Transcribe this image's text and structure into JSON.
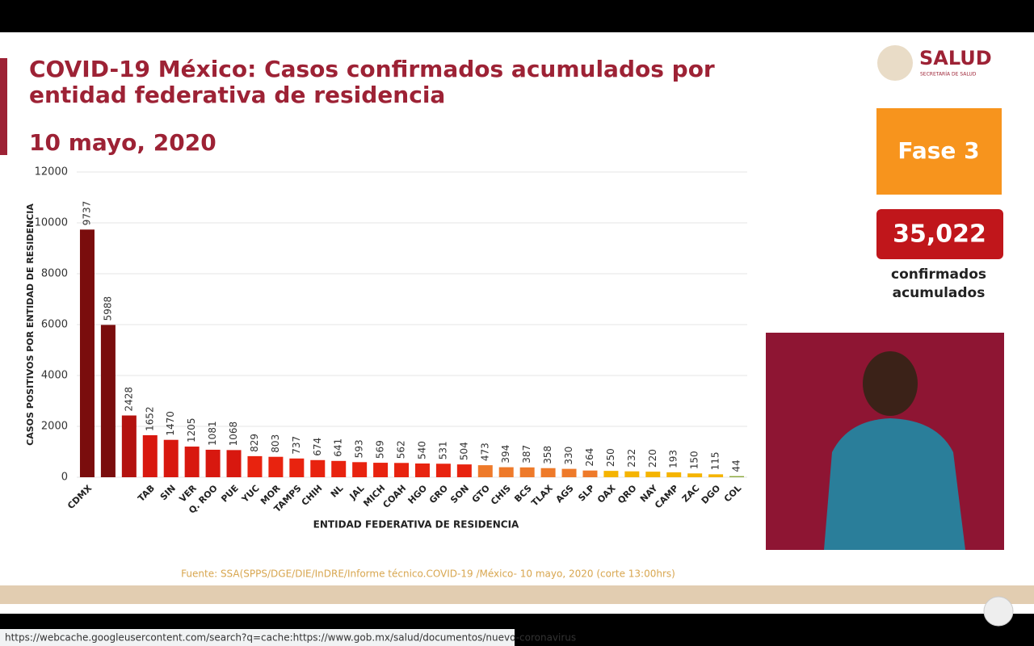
{
  "chart_data": {
    "type": "bar",
    "title": "COVID-19 México: Casos confirmados acumulados por entidad federativa de residencia",
    "subtitle": "10 mayo, 2020",
    "y_label": "CASOS POSITIVOS POR ENTIDAD DE RESIDENCIA",
    "x_label": "ENTIDAD FEDERATIVA DE RESIDENCIA",
    "categories": [
      "CDMX",
      null,
      null,
      "TAB",
      "SIN",
      "VER",
      "Q. ROO",
      "PUE",
      "YUC",
      "MOR",
      "TAMPS",
      "CHIH",
      "NL",
      "JAL",
      "MICH",
      "COAH",
      "HGO",
      "GRO",
      "SON",
      "GTO",
      "CHIS",
      "BCS",
      "TLAX",
      "AGS",
      "SLP",
      "OAX",
      "QRO",
      "NAY",
      "CAMP",
      "ZAC",
      "DGO",
      "COL"
    ],
    "values": [
      9737,
      5988,
      2428,
      1652,
      1470,
      1205,
      1081,
      1068,
      829,
      803,
      737,
      674,
      641,
      593,
      569,
      562,
      540,
      531,
      504,
      473,
      394,
      387,
      358,
      330,
      264,
      250,
      232,
      220,
      193,
      150,
      115,
      44
    ],
    "colors": [
      "#7a0d0d",
      "#7a0d0d",
      "#b3120f",
      "#d8180f",
      "#d8180f",
      "#d8180f",
      "#d8180f",
      "#d8180f",
      "#e8230f",
      "#e8230f",
      "#e8230f",
      "#e8230f",
      "#e8230f",
      "#e8230f",
      "#e8230f",
      "#e8230f",
      "#e8230f",
      "#e8230f",
      "#e8230f",
      "#ee7a2a",
      "#ee7a2a",
      "#ee7a2a",
      "#ee7a2a",
      "#ee7a2a",
      "#ee7a2a",
      "#f5b400",
      "#f5b400",
      "#f5b400",
      "#f5b400",
      "#f5b400",
      "#f5b400",
      "#8aa83a"
    ],
    "ylim": [
      0,
      12000
    ],
    "yticks": [
      0,
      2000,
      4000,
      6000,
      8000,
      10000,
      12000
    ],
    "grid": true,
    "source": "Fuente: SSA(SPPS/DGE/DIE/InDRE/Informe técnico.COVID-19 /México- 10 mayo, 2020 (corte 13:00hrs)"
  },
  "logo": {
    "name": "SALUD",
    "subtitle": "SECRETARÍA DE SALUD"
  },
  "phase": "Fase 3",
  "total": {
    "value": "35,022",
    "caption_1": "confirmados",
    "caption_2": "acumulados"
  },
  "status_url": "https://webcache.googleusercontent.com/search?q=cache:https://www.gob.mx/salud/documentos/nuevo-coronavirus"
}
